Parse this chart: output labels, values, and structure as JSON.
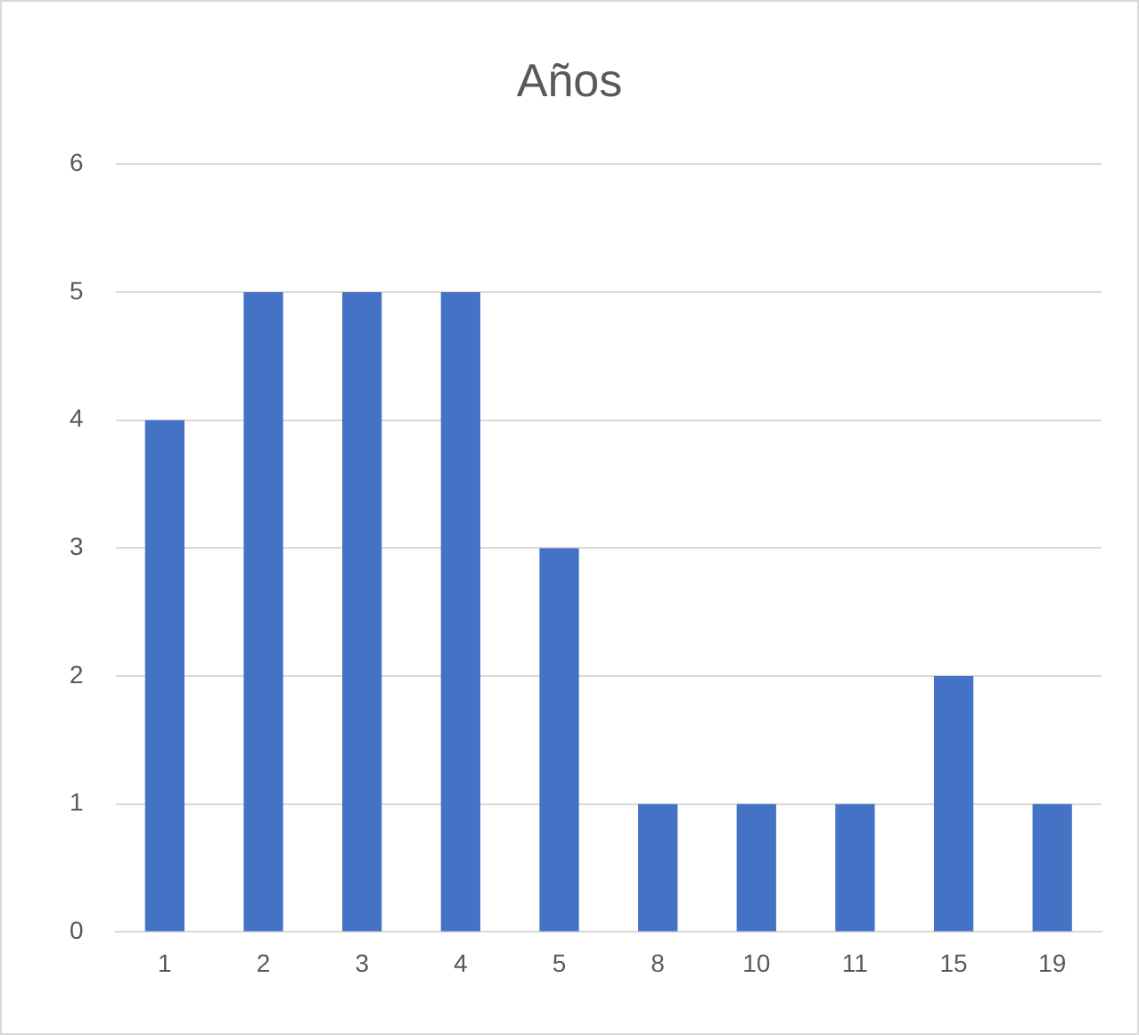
{
  "chart_data": {
    "type": "bar",
    "title": "Años",
    "categories": [
      "1",
      "2",
      "3",
      "4",
      "5",
      "8",
      "10",
      "11",
      "15",
      "19"
    ],
    "values": [
      4,
      5,
      5,
      5,
      3,
      1,
      1,
      1,
      2,
      1
    ],
    "color": "#4472c4",
    "ylim": [
      0,
      6
    ],
    "yticks": [
      0,
      1,
      2,
      3,
      4,
      5,
      6
    ],
    "grid": "y",
    "legend": false
  }
}
